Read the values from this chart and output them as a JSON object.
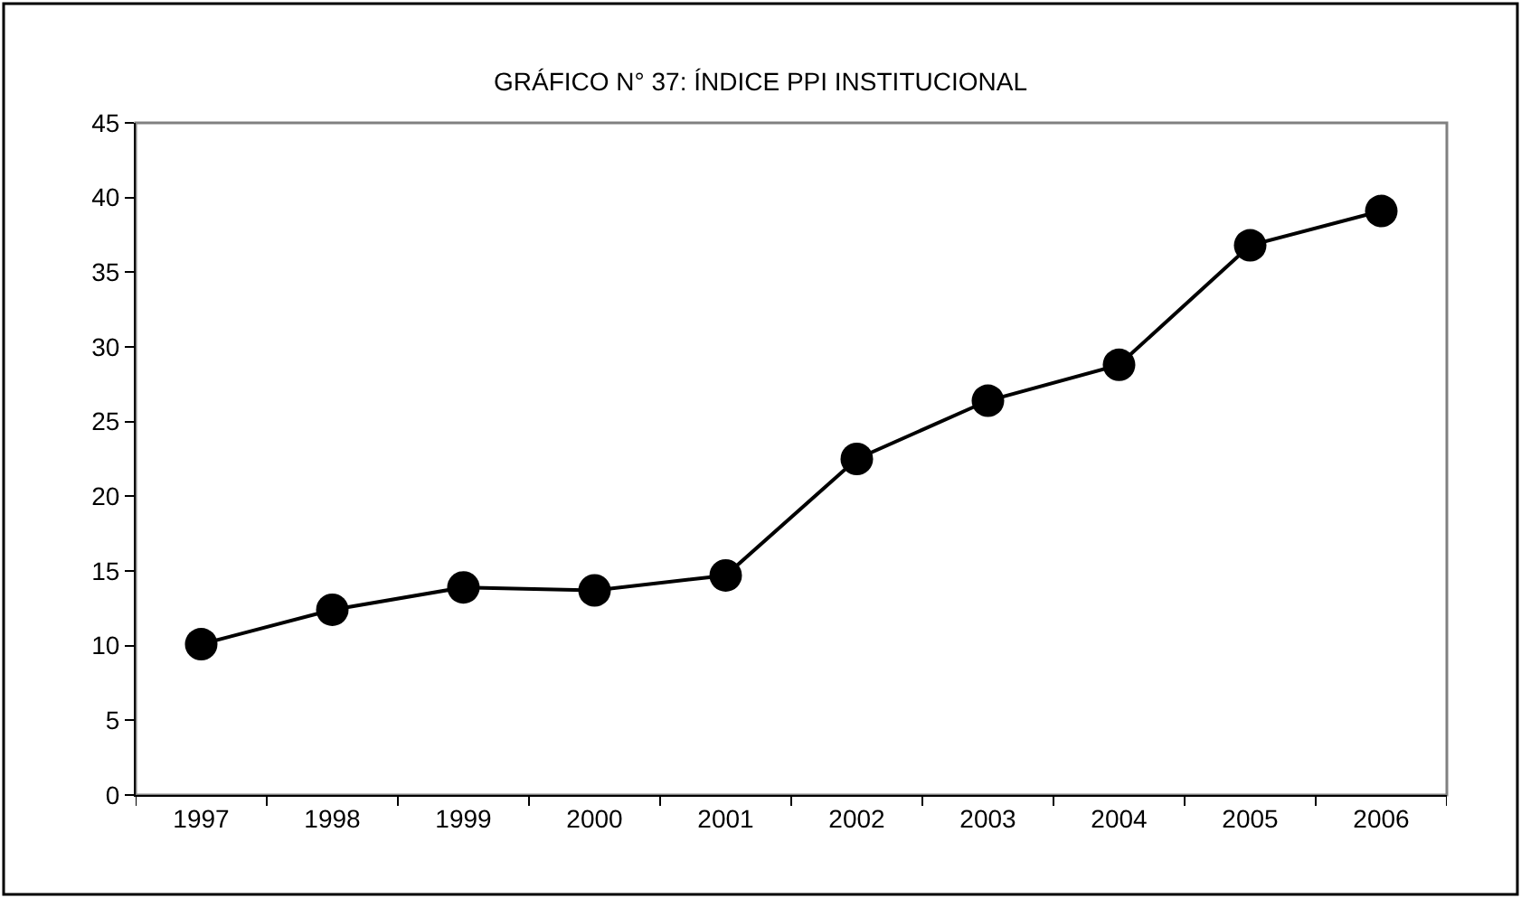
{
  "chart_data": {
    "type": "line",
    "title": "GRÁFICO N° 37: ÍNDICE PPI INSTITUCIONAL",
    "categories": [
      "1997",
      "1998",
      "1999",
      "2000",
      "2001",
      "2002",
      "2003",
      "2004",
      "2005",
      "2006"
    ],
    "series": [
      {
        "color": "#000000",
        "values": [
          10.1,
          12.4,
          13.9,
          13.7,
          14.7,
          22.5,
          26.4,
          28.8,
          36.8,
          39.1
        ]
      }
    ],
    "ylim": [
      0,
      45
    ],
    "yticks": [
      0,
      5,
      10,
      15,
      20,
      25,
      30,
      35,
      40,
      45
    ],
    "grid": false,
    "marker": "circle",
    "line_style": "solid"
  }
}
